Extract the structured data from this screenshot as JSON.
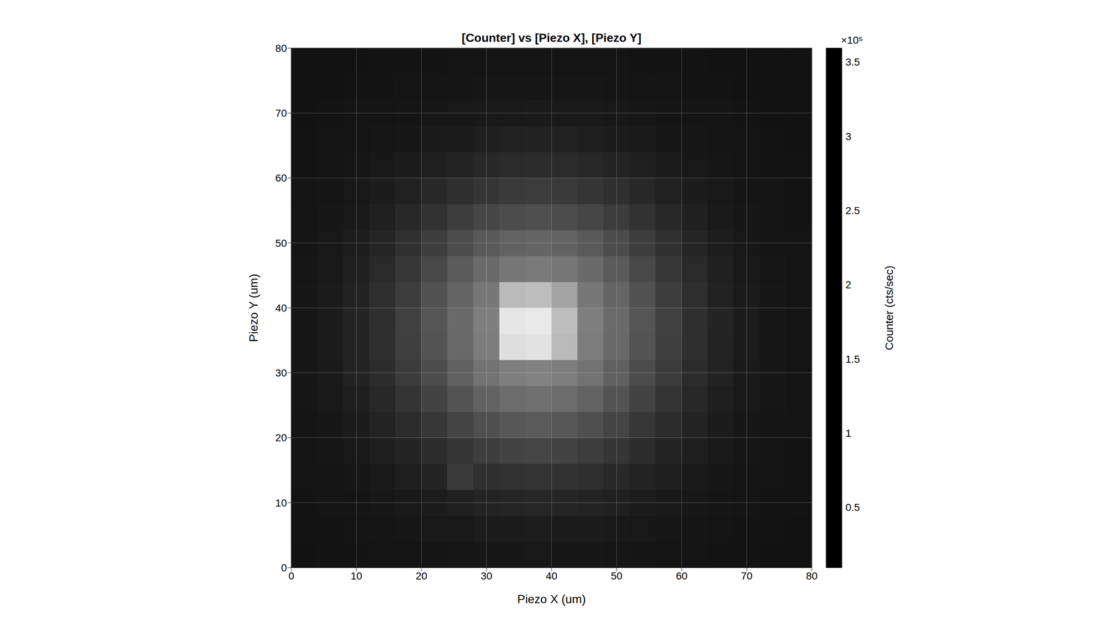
{
  "chart_data": {
    "type": "heatmap",
    "title": "[Counter] vs [Piezo X], [Piezo Y]",
    "x_label": "Piezo X (um)",
    "y_label": "Piezo Y (um)",
    "color": "gray",
    "grid": true,
    "x": [
      2,
      6,
      10,
      14,
      18,
      22,
      26,
      30,
      34,
      38,
      42,
      46,
      50,
      54,
      58,
      62,
      66,
      70,
      74,
      78
    ],
    "y": [
      2,
      6,
      10,
      14,
      18,
      22,
      26,
      30,
      34,
      38,
      42,
      46,
      50,
      54,
      58,
      62,
      66,
      70,
      74,
      78
    ],
    "values": [
      [
        0.35,
        0.36,
        0.36,
        0.37,
        0.38,
        0.39,
        0.4,
        0.42,
        0.42,
        0.43,
        0.42,
        0.42,
        0.4,
        0.39,
        0.38,
        0.37,
        0.36,
        0.36,
        0.35,
        0.35
      ],
      [
        0.36,
        0.36,
        0.37,
        0.39,
        0.4,
        0.43,
        0.45,
        0.48,
        0.49,
        0.5,
        0.49,
        0.48,
        0.45,
        0.43,
        0.4,
        0.39,
        0.37,
        0.36,
        0.36,
        0.35
      ],
      [
        0.36,
        0.37,
        0.39,
        0.41,
        0.45,
        0.49,
        0.54,
        0.58,
        0.61,
        0.62,
        0.61,
        0.58,
        0.54,
        0.49,
        0.45,
        0.41,
        0.39,
        0.37,
        0.36,
        0.36
      ],
      [
        0.37,
        0.38,
        0.41,
        0.45,
        0.51,
        0.59,
        0.9,
        0.74,
        0.79,
        0.8,
        0.79,
        0.74,
        0.66,
        0.59,
        0.51,
        0.45,
        0.41,
        0.38,
        0.37,
        0.36
      ],
      [
        0.38,
        0.4,
        0.44,
        0.51,
        0.6,
        0.71,
        0.83,
        0.94,
        1.02,
        1.05,
        1.02,
        0.94,
        0.83,
        0.71,
        0.6,
        0.51,
        0.44,
        0.4,
        0.38,
        0.36
      ],
      [
        0.39,
        0.42,
        0.48,
        0.58,
        0.71,
        0.86,
        1.03,
        1.19,
        1.3,
        1.34,
        1.3,
        1.19,
        1.03,
        0.86,
        0.71,
        0.58,
        0.48,
        0.42,
        0.39,
        0.37
      ],
      [
        0.4,
        0.44,
        0.52,
        0.65,
        0.81,
        1.02,
        1.24,
        1.44,
        1.58,
        1.64,
        1.58,
        1.44,
        1.24,
        1.02,
        0.81,
        0.65,
        0.52,
        0.44,
        0.4,
        0.37
      ],
      [
        0.41,
        0.46,
        0.56,
        0.71,
        0.91,
        1.15,
        1.42,
        1.66,
        1.83,
        1.89,
        1.83,
        1.66,
        1.42,
        1.15,
        0.91,
        0.71,
        0.56,
        0.46,
        0.41,
        0.38
      ],
      [
        0.41,
        0.48,
        0.58,
        0.74,
        0.97,
        1.24,
        1.54,
        1.8,
        3.15,
        3.2,
        2.65,
        1.8,
        1.54,
        1.24,
        0.97,
        0.74,
        0.58,
        0.48,
        0.41,
        0.38
      ],
      [
        0.42,
        0.48,
        0.59,
        0.75,
        0.98,
        1.26,
        1.56,
        1.83,
        3.25,
        3.3,
        2.7,
        1.83,
        1.56,
        1.26,
        0.98,
        0.75,
        0.59,
        0.48,
        0.42,
        0.38
      ],
      [
        0.41,
        0.47,
        0.57,
        0.73,
        0.94,
        1.21,
        1.49,
        1.74,
        2.65,
        2.7,
        2.35,
        1.74,
        1.49,
        1.21,
        0.94,
        0.73,
        0.57,
        0.47,
        0.41,
        0.38
      ],
      [
        0.4,
        0.45,
        0.54,
        0.68,
        0.86,
        1.09,
        1.34,
        1.56,
        1.72,
        1.77,
        1.72,
        1.56,
        1.34,
        1.09,
        0.86,
        0.68,
        0.54,
        0.45,
        0.4,
        0.37
      ],
      [
        0.39,
        0.43,
        0.5,
        0.61,
        0.76,
        0.94,
        1.14,
        1.32,
        1.44,
        1.49,
        1.44,
        1.32,
        1.14,
        0.94,
        0.76,
        0.61,
        0.5,
        0.43,
        0.39,
        0.37
      ],
      [
        0.38,
        0.41,
        0.46,
        0.54,
        0.65,
        0.79,
        0.93,
        1.06,
        1.15,
        1.19,
        1.15,
        1.06,
        0.93,
        0.79,
        0.65,
        0.54,
        0.46,
        0.41,
        0.38,
        0.36
      ],
      [
        0.37,
        0.39,
        0.43,
        0.48,
        0.55,
        0.65,
        0.74,
        0.83,
        0.89,
        0.92,
        0.89,
        0.83,
        0.74,
        0.65,
        0.55,
        0.48,
        0.43,
        0.39,
        0.37,
        0.36
      ],
      [
        0.36,
        0.38,
        0.4,
        0.43,
        0.48,
        0.54,
        0.6,
        0.65,
        0.69,
        0.71,
        0.69,
        0.65,
        0.6,
        0.54,
        0.48,
        0.43,
        0.4,
        0.38,
        0.36,
        0.36
      ],
      [
        0.36,
        0.37,
        0.38,
        0.4,
        0.42,
        0.46,
        0.49,
        0.52,
        0.55,
        0.56,
        0.55,
        0.52,
        0.49,
        0.46,
        0.42,
        0.4,
        0.38,
        0.37,
        0.36,
        0.35
      ],
      [
        0.35,
        0.36,
        0.37,
        0.38,
        0.39,
        0.41,
        0.43,
        0.44,
        0.45,
        0.46,
        0.45,
        0.44,
        0.43,
        0.41,
        0.39,
        0.38,
        0.37,
        0.36,
        0.35,
        0.35
      ],
      [
        0.35,
        0.35,
        0.36,
        0.36,
        0.37,
        0.38,
        0.39,
        0.4,
        0.4,
        0.4,
        0.4,
        0.4,
        0.39,
        0.38,
        0.37,
        0.36,
        0.36,
        0.35,
        0.35,
        0.35
      ],
      [
        0.35,
        0.35,
        0.35,
        0.36,
        0.36,
        0.36,
        0.37,
        0.37,
        0.37,
        0.37,
        0.37,
        0.37,
        0.37,
        0.36,
        0.36,
        0.36,
        0.35,
        0.35,
        0.35,
        0.35
      ]
    ],
    "xlim": [
      0,
      80
    ],
    "ylim": [
      0,
      80
    ],
    "xticks": [
      0,
      10,
      20,
      30,
      40,
      50,
      60,
      70,
      80
    ],
    "yticks": [
      0,
      10,
      20,
      30,
      40,
      50,
      60,
      70,
      80
    ],
    "colorbar": {
      "label": "Counter (cts/sec)",
      "multiplier": "×10⁵",
      "range": [
        0.1,
        3.6
      ],
      "ticks": [
        0.5,
        1,
        1.5,
        2,
        2.5,
        3,
        3.5
      ]
    }
  }
}
